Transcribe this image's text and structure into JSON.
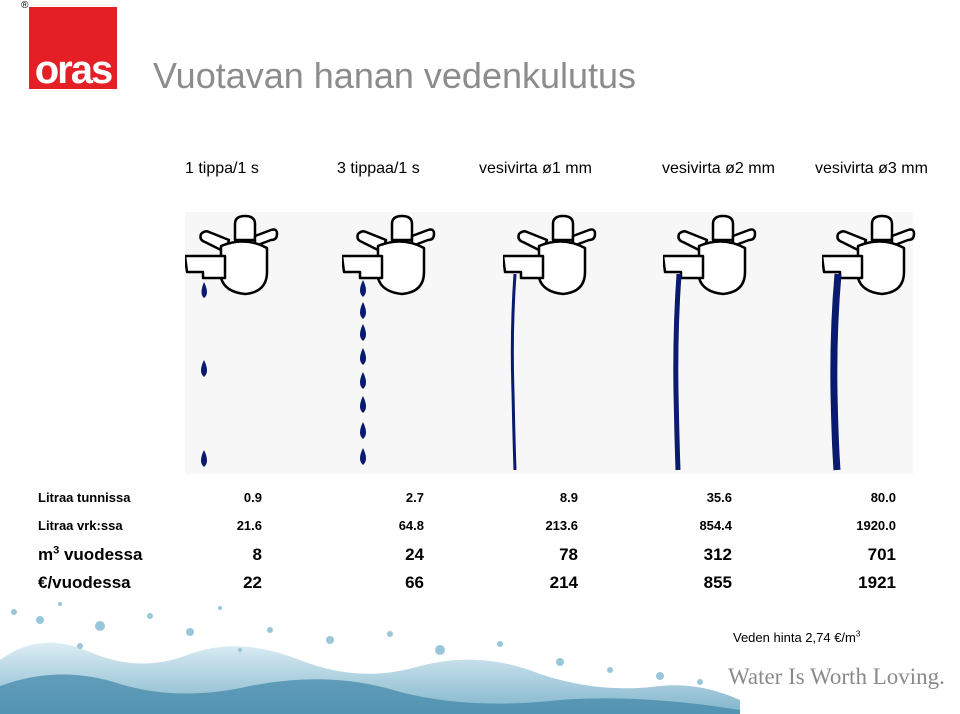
{
  "brand": {
    "registered_mark": "®",
    "logo_text": "oras"
  },
  "title": "Vuotavan hanan vedenkulutus",
  "columns": [
    "1 tippa/1 s",
    "3 tippaa/1 s",
    "vesivirta ø1 mm",
    "vesivirta ø2 mm",
    "vesivirta ø3 mm"
  ],
  "rows": {
    "litraa_tunnissa": {
      "label": "Litraa tunnissa",
      "values": [
        "0.9",
        "2.7",
        "8.9",
        "35.6",
        "80.0"
      ]
    },
    "litraa_vrk": {
      "label": "Litraa vrk:ssa",
      "values": [
        "21.6",
        "64.8",
        "213.6",
        "854.4",
        "1920.0"
      ]
    },
    "m3_vuodessa": {
      "label_prefix": "m",
      "label_sup": "3",
      "label_suffix": " vuodessa",
      "values": [
        "8",
        "24",
        "78",
        "312",
        "701"
      ]
    },
    "eur_vuodessa": {
      "label": "€/vuodessa",
      "values": [
        "22",
        "66",
        "214",
        "855",
        "1921"
      ]
    }
  },
  "footer": {
    "price_text": "Veden hinta 2,74 €/m",
    "price_sup": "3",
    "slogan": "Water Is Worth Loving."
  },
  "colors": {
    "brand_red": "#e41f26",
    "water_blue": "#0a1a6e",
    "title_gray": "#8c8c8c"
  },
  "icons": [
    "faucet-icon",
    "water-drop-icon",
    "water-stream-icon",
    "water-splash-decoration"
  ]
}
